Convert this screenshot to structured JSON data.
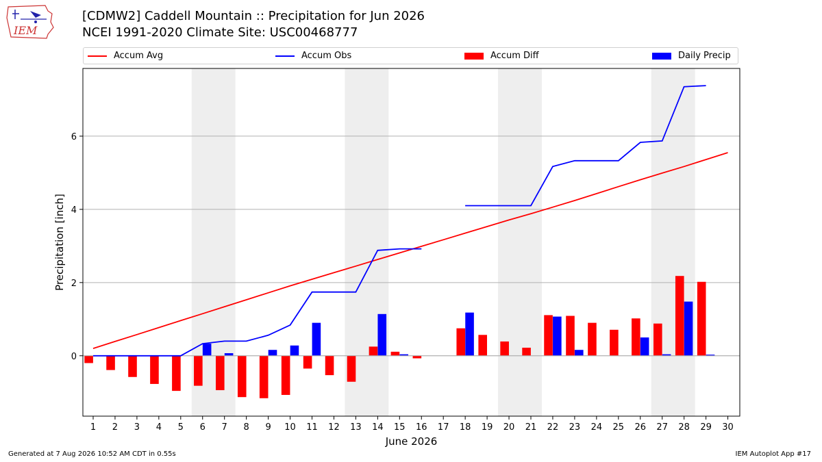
{
  "header": {
    "logo_text": "IEM",
    "title_line1": "[CDMW2] Caddell Mountain :: Precipitation for Jun 2026",
    "title_line2": "NCEI 1991-2020 Climate Site: USC00468777"
  },
  "footer": {
    "left": "Generated at 7 Aug 2026 10:52 AM CDT in 0.55s",
    "right": "IEM Autoplot App #17"
  },
  "colors": {
    "avg": "#ff0000",
    "obs": "#0000ff",
    "diff": "#ff0000",
    "daily": "#0000ff",
    "weekend_shade": "#eeeeee",
    "grid": "#b0b0b0"
  },
  "chart_data": {
    "type": "bar",
    "xlabel": "June 2026",
    "ylabel": "Precipitation [inch]",
    "ylim": [
      -1.65,
      7.85
    ],
    "yticks": [
      0,
      2,
      4,
      6
    ],
    "grid": "y",
    "legend_position": "top",
    "days": [
      1,
      2,
      3,
      4,
      5,
      6,
      7,
      8,
      9,
      10,
      11,
      12,
      13,
      14,
      15,
      16,
      17,
      18,
      19,
      20,
      21,
      22,
      23,
      24,
      25,
      26,
      27,
      28,
      29,
      30
    ],
    "weekend_spans": [
      [
        6,
        7
      ],
      [
        13,
        14
      ],
      [
        20,
        21
      ],
      [
        27,
        28
      ]
    ],
    "series": [
      {
        "name": "Accum Avg",
        "kind": "line",
        "values": [
          0.2,
          0.39,
          0.58,
          0.77,
          0.96,
          1.15,
          1.34,
          1.53,
          1.72,
          1.91,
          2.09,
          2.27,
          2.45,
          2.63,
          2.81,
          2.99,
          3.17,
          3.35,
          3.53,
          3.71,
          3.88,
          4.06,
          4.24,
          4.43,
          4.62,
          4.81,
          4.99,
          5.17,
          5.36,
          5.55
        ]
      },
      {
        "name": "Accum Obs",
        "kind": "line",
        "values": [
          0,
          0,
          0,
          0,
          0,
          0.33,
          0.4,
          0.4,
          0.56,
          0.84,
          1.74,
          1.74,
          1.74,
          2.88,
          2.92,
          2.92,
          null,
          4.1,
          4.1,
          4.1,
          4.1,
          5.17,
          5.33,
          5.33,
          5.33,
          5.83,
          5.87,
          7.35,
          7.38,
          null
        ]
      },
      {
        "name": "Accum Diff",
        "kind": "bar",
        "values": [
          -0.2,
          -0.39,
          -0.58,
          -0.77,
          -0.96,
          -0.82,
          -0.94,
          -1.13,
          -1.16,
          -1.07,
          -0.35,
          -0.53,
          -0.71,
          0.25,
          0.11,
          -0.07,
          null,
          0.75,
          0.57,
          0.39,
          0.22,
          1.11,
          1.09,
          0.9,
          0.71,
          1.02,
          0.88,
          2.18,
          2.02,
          null
        ]
      },
      {
        "name": "Daily Precip",
        "kind": "bar",
        "values": [
          0,
          0,
          0,
          0,
          0,
          0.33,
          0.07,
          0,
          0.16,
          0.28,
          0.9,
          0,
          0,
          1.14,
          0.04,
          0,
          null,
          1.18,
          0,
          0,
          0,
          1.07,
          0.16,
          0,
          0,
          0.5,
          0.04,
          1.48,
          0.03,
          null
        ]
      }
    ]
  }
}
